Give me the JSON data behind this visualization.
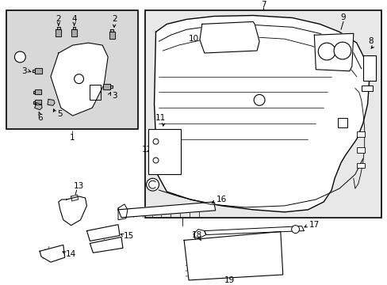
{
  "bg_color": "#ffffff",
  "fig_bg": "#ffffff",
  "inset_bg": "#d8d8d8",
  "main_bg": "#e8e8e8",
  "line_color": "#000000",
  "text_color": "#000000",
  "font_size": 7.5
}
